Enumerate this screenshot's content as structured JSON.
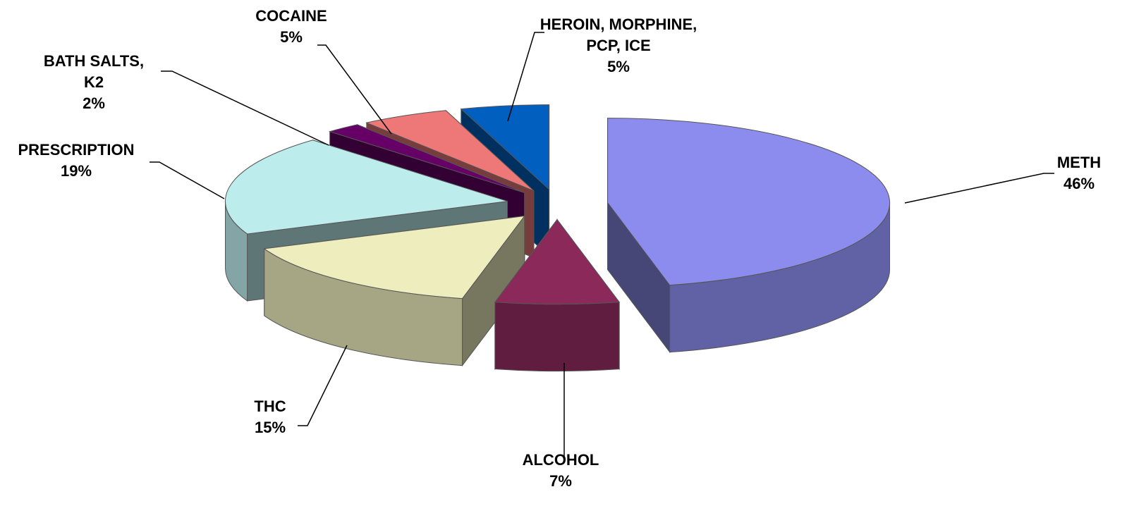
{
  "chart_data": {
    "type": "pie",
    "categories": [
      "METH",
      "ALCOHOL",
      "THC",
      "PRESCRIPTION",
      "BATH SALTS, K2",
      "COCAINE",
      "HEROIN, MORPHINE, PCP, ICE"
    ],
    "values": [
      46,
      7,
      15,
      19,
      2,
      5,
      5
    ],
    "value_labels": [
      "46%",
      "7%",
      "15%",
      "19%",
      "2%",
      "5%",
      "5%"
    ],
    "colors": [
      "#8b8ced",
      "#8b2a5a",
      "#ededbe",
      "#bdeced",
      "#660066",
      "#ee7777",
      "#005fbf"
    ]
  }
}
